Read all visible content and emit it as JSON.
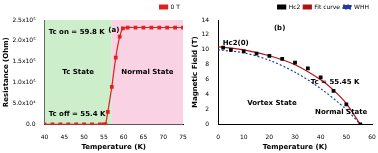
{
  "chart_data": [
    {
      "type": "line",
      "xlabel": "Temperature (K)",
      "ylabel": "Resistance (Ohm)",
      "xlim": [
        40,
        75
      ],
      "xticks": [
        40,
        45,
        50,
        55,
        60,
        65,
        70,
        75
      ],
      "ylim": [
        0,
        250000
      ],
      "yticks": [
        {
          "value": 0,
          "label": "0.0"
        },
        {
          "value": 50000,
          "label": "5.0x10⁴"
        },
        {
          "value": 100000,
          "label": "1.0x10⁵"
        },
        {
          "value": 150000,
          "label": "1.5x10⁵"
        },
        {
          "value": 200000,
          "label": "2.0x10⁵"
        },
        {
          "value": 250000,
          "label": "2.5x10⁵"
        }
      ],
      "grid": false,
      "legend": "top right",
      "series": [
        {
          "name": "0 T",
          "color": "#e02020",
          "marker": "square",
          "line_style": "solid",
          "type": "line",
          "x": [
            40,
            42,
            44,
            46,
            48,
            50,
            52,
            54,
            55,
            55.4,
            56,
            57,
            58,
            59,
            59.8,
            61,
            63,
            65,
            67,
            69,
            71,
            73,
            75
          ],
          "values": [
            0,
            0,
            0,
            0,
            0,
            0,
            0,
            0,
            0,
            0,
            30000,
            90000,
            160000,
            210000,
            230000,
            232000,
            232000,
            232000,
            232000,
            232000,
            232000,
            232000,
            232000
          ]
        }
      ],
      "regions": [
        {
          "label": "Tc State",
          "from": 40,
          "to": 57,
          "color": "#cdeecb"
        },
        {
          "label": "Normal State",
          "from": 57,
          "to": 75,
          "color": "#f9d3e3"
        }
      ],
      "annotations": [
        "(a)",
        "Tc on = 59.8 K",
        "Tc off = 55.4 K"
      ]
    },
    {
      "type": "scatter",
      "xlabel": "Temperature (K)",
      "ylabel": "Magnetic Field (T)",
      "xlim": [
        0,
        60
      ],
      "xticks": [
        0,
        10,
        20,
        30,
        40,
        50,
        60
      ],
      "ylim": [
        0,
        14
      ],
      "yticks": [
        0,
        2,
        4,
        6,
        8,
        10,
        12,
        14
      ],
      "grid": false,
      "legend": "top right",
      "series": [
        {
          "name": "Hc2",
          "color": "#000000",
          "marker": "square",
          "line_style": "none",
          "type": "scatter",
          "x": [
            2,
            5,
            10,
            15,
            20,
            25,
            30,
            35,
            40,
            45,
            50,
            55.45
          ],
          "values": [
            10.3,
            10.0,
            9.8,
            9.5,
            9.2,
            8.8,
            8.3,
            7.5,
            6.3,
            4.5,
            2.7,
            0
          ]
        },
        {
          "name": "Fit curve",
          "color": "#b01010",
          "marker": "none",
          "line_style": "solid",
          "type": "line",
          "x": [
            0,
            10,
            20,
            30,
            40,
            45,
            50,
            55.45
          ],
          "values": [
            10.4,
            10.0,
            9.2,
            8.0,
            6.0,
            4.6,
            2.8,
            0
          ]
        },
        {
          "name": "WHH",
          "color": "#1f3f9f",
          "marker": "none",
          "line_style": "dotted",
          "type": "line",
          "x": [
            0,
            10,
            20,
            30,
            40,
            50,
            55.45
          ],
          "values": [
            10.0,
            9.6,
            8.6,
            7.0,
            4.8,
            2.0,
            0
          ]
        }
      ],
      "annotations": [
        "(b)",
        "Hc2(0)",
        "Vortex State",
        "Normal State",
        "Tc = 55.45 K"
      ]
    }
  ]
}
